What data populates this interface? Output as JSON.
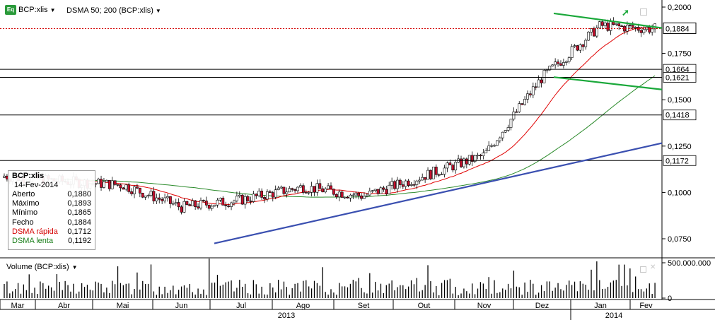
{
  "toolbar": {
    "symbol_badge": "Eq",
    "symbol_label": "BCP:xlis",
    "indicator_label": "DSMA 50; 200 (BCP:xlis)"
  },
  "legend": {
    "symbol": "BCP:xlis",
    "date": "14-Fev-2014",
    "rows": [
      {
        "label": "Aberto",
        "value": "0,1880",
        "color": "#000000"
      },
      {
        "label": "Máximo",
        "value": "0,1893",
        "color": "#000000"
      },
      {
        "label": "Mínimo",
        "value": "0,1865",
        "color": "#000000"
      },
      {
        "label": "Fecho",
        "value": "0,1884",
        "color": "#000000"
      },
      {
        "label": "DSMA rápida",
        "value": "0,1712",
        "color": "#d40000"
      },
      {
        "label": "DSMA lenta",
        "value": "0,1192",
        "color": "#1a7f1a"
      }
    ]
  },
  "volume_panel": {
    "title": "Volume (BCP:xlis)",
    "ticks": [
      "500.000.000",
      "0"
    ]
  },
  "colors": {
    "up_candle": "#ffffff",
    "down_candle": "#c8102e",
    "fast_ma": "#e00000",
    "slow_ma": "#2a8a2a",
    "trend_blue": "#3a4fb0",
    "channel_green": "#1aa83a",
    "last_price_line": "#d40000",
    "grid_line": "#000000"
  },
  "chart_data": {
    "type": "candlestick",
    "price_axis": {
      "ylim": [
        0.07,
        0.2
      ],
      "ticks": [
        "0,2000",
        "0,1750",
        "0,1500",
        "0,1250",
        "0,1000",
        "0,0750"
      ]
    },
    "last_price_label": "0,1884",
    "horizontal_levels": [
      {
        "value": 0.1664,
        "label": "0,1664"
      },
      {
        "value": 0.1621,
        "label": "0,1621"
      },
      {
        "value": 0.1418,
        "label": "0,1418"
      },
      {
        "value": 0.1172,
        "label": "0,1172"
      }
    ],
    "months": [
      "Mar",
      "Abr",
      "Mai",
      "Jun",
      "Jul",
      "Ago",
      "Set",
      "Out",
      "Nov",
      "Dez",
      "Jan",
      "Fev"
    ],
    "years": [
      "2013",
      "2014"
    ],
    "close_series": [
      {
        "m": "Mar",
        "v": 0.108
      },
      {
        "m": "Abr",
        "v": 0.106
      },
      {
        "m": "Mai",
        "v": 0.104
      },
      {
        "m": "Jun",
        "v": 0.092
      },
      {
        "m": "Jul",
        "v": 0.096
      },
      {
        "m": "Ago",
        "v": 0.103
      },
      {
        "m": "Set",
        "v": 0.098
      },
      {
        "m": "Out",
        "v": 0.109
      },
      {
        "m": "Nov",
        "v": 0.12
      },
      {
        "m": "Dez",
        "v": 0.162
      },
      {
        "m": "Jan",
        "v": 0.19
      },
      {
        "m": "Fev",
        "v": 0.1884
      }
    ]
  }
}
